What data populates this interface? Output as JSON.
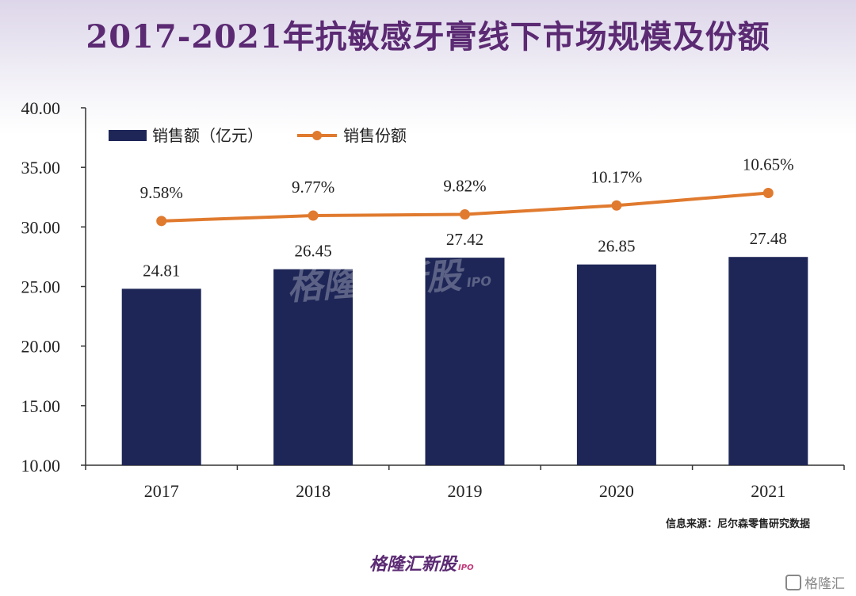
{
  "title": "2017-2021年抗敏感牙膏线下市场规模及份额",
  "source": "信息来源：尼尔森零售研究数据",
  "brand": {
    "name": "格隆汇新股",
    "suffix": "IPO"
  },
  "corner_label": "格隆汇",
  "watermark": {
    "text": "格隆汇新股",
    "suffix": "IPO"
  },
  "colors": {
    "bar": "#1e2657",
    "line": "#e07a2e",
    "title": "#5b2a73"
  },
  "chart_data": {
    "type": "bar",
    "title": "2017-2021年抗敏感牙膏线下市场规模及份额",
    "categories": [
      "2017",
      "2018",
      "2019",
      "2020",
      "2021"
    ],
    "ylim": [
      10,
      40
    ],
    "yticks": [
      "10.00",
      "15.00",
      "20.00",
      "25.00",
      "30.00",
      "35.00",
      "40.00"
    ],
    "legend_position": "top-left",
    "series": [
      {
        "name": "销售额（亿元）",
        "type": "bar",
        "values": [
          24.81,
          26.45,
          27.42,
          26.85,
          27.48
        ],
        "labels": [
          "24.81",
          "26.45",
          "27.42",
          "26.85",
          "27.48"
        ]
      },
      {
        "name": "销售份额",
        "type": "line",
        "values": [
          9.58,
          9.77,
          9.82,
          10.17,
          10.65
        ],
        "labels": [
          "9.58%",
          "9.77%",
          "9.82%",
          "10.17%",
          "10.65%"
        ],
        "plotted_on_left_axis": [
          30.5,
          30.95,
          31.05,
          31.8,
          32.85
        ]
      }
    ]
  }
}
